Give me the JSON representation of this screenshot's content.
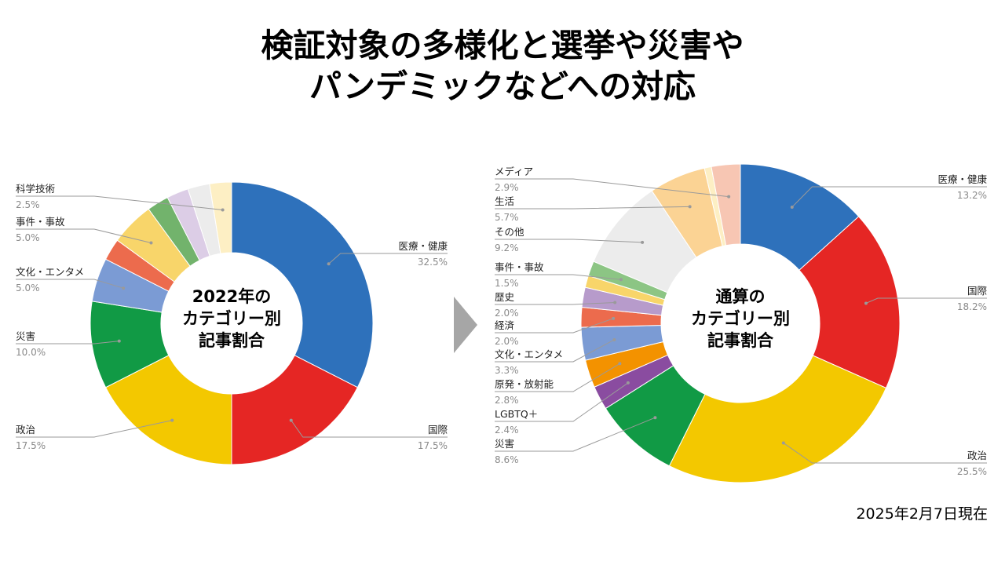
{
  "title": {
    "line1": "検証対象の多様化と選挙や災害や",
    "line2": "パンデミックなどへの対応"
  },
  "footnote": "2025年2月7日現在",
  "chart_data": [
    {
      "type": "pie",
      "center_label": [
        "2022年の",
        "カテゴリー別",
        "記事割合"
      ],
      "slices": [
        {
          "label": "医療・健康",
          "value": 32.5,
          "pct": "32.5%",
          "color": "#2e71bb"
        },
        {
          "label": "国際",
          "value": 17.5,
          "pct": "17.5%",
          "color": "#e52624"
        },
        {
          "label": "政治",
          "value": 17.5,
          "pct": "17.5%",
          "color": "#f3c800"
        },
        {
          "label": "災害",
          "value": 10.0,
          "pct": "10.0%",
          "color": "#119a45"
        },
        {
          "label": "文化・エンタメ",
          "value": 5.0,
          "pct": "5.0%",
          "color": "#7b9bd4"
        },
        {
          "label": "",
          "value": 2.5,
          "pct": "",
          "color": "#ec6b4d"
        },
        {
          "label": "事件・事故",
          "value": 5.0,
          "pct": "5.0%",
          "color": "#f8d56a"
        },
        {
          "label": "",
          "value": 2.5,
          "pct": "",
          "color": "#72b36c"
        },
        {
          "label": "",
          "value": 2.5,
          "pct": "",
          "color": "#dccde6"
        },
        {
          "label": "",
          "value": 2.5,
          "pct": "",
          "color": "#ececec"
        },
        {
          "label": "科学技術",
          "value": 2.5,
          "pct": "2.5%",
          "color": "#fdefc4"
        }
      ]
    },
    {
      "type": "pie",
      "center_label": [
        "通算の",
        "カテゴリー別",
        "記事割合"
      ],
      "slices": [
        {
          "label": "医療・健康",
          "value": 13.2,
          "pct": "13.2%",
          "color": "#2e71bb"
        },
        {
          "label": "国際",
          "value": 18.2,
          "pct": "18.2%",
          "color": "#e52624"
        },
        {
          "label": "政治",
          "value": 25.5,
          "pct": "25.5%",
          "color": "#f3c800"
        },
        {
          "label": "災害",
          "value": 8.6,
          "pct": "8.6%",
          "color": "#119a45"
        },
        {
          "label": "LGBTQ＋",
          "value": 2.4,
          "pct": "2.4%",
          "color": "#8a4ca0"
        },
        {
          "label": "原発・放射能",
          "value": 2.8,
          "pct": "2.8%",
          "color": "#f39200"
        },
        {
          "label": "文化・エンタメ",
          "value": 3.3,
          "pct": "3.3%",
          "color": "#7b9bd4"
        },
        {
          "label": "経済",
          "value": 2.0,
          "pct": "2.0%",
          "color": "#ec6b4d"
        },
        {
          "label": "歴史",
          "value": 2.0,
          "pct": "2.0%",
          "color": "#b79bcb"
        },
        {
          "label": "",
          "value": 1.2,
          "pct": "",
          "color": "#f8d56a"
        },
        {
          "label": "事件・事故",
          "value": 1.5,
          "pct": "1.5%",
          "color": "#8cc584"
        },
        {
          "label": "その他",
          "value": 9.2,
          "pct": "9.2%",
          "color": "#ececec"
        },
        {
          "label": "生活",
          "value": 5.7,
          "pct": "5.7%",
          "color": "#fbd394"
        },
        {
          "label": "",
          "value": 0.7,
          "pct": "",
          "color": "#fdefc4"
        },
        {
          "label": "メディア",
          "value": 2.9,
          "pct": "2.9%",
          "color": "#f7c6b3"
        }
      ]
    }
  ]
}
